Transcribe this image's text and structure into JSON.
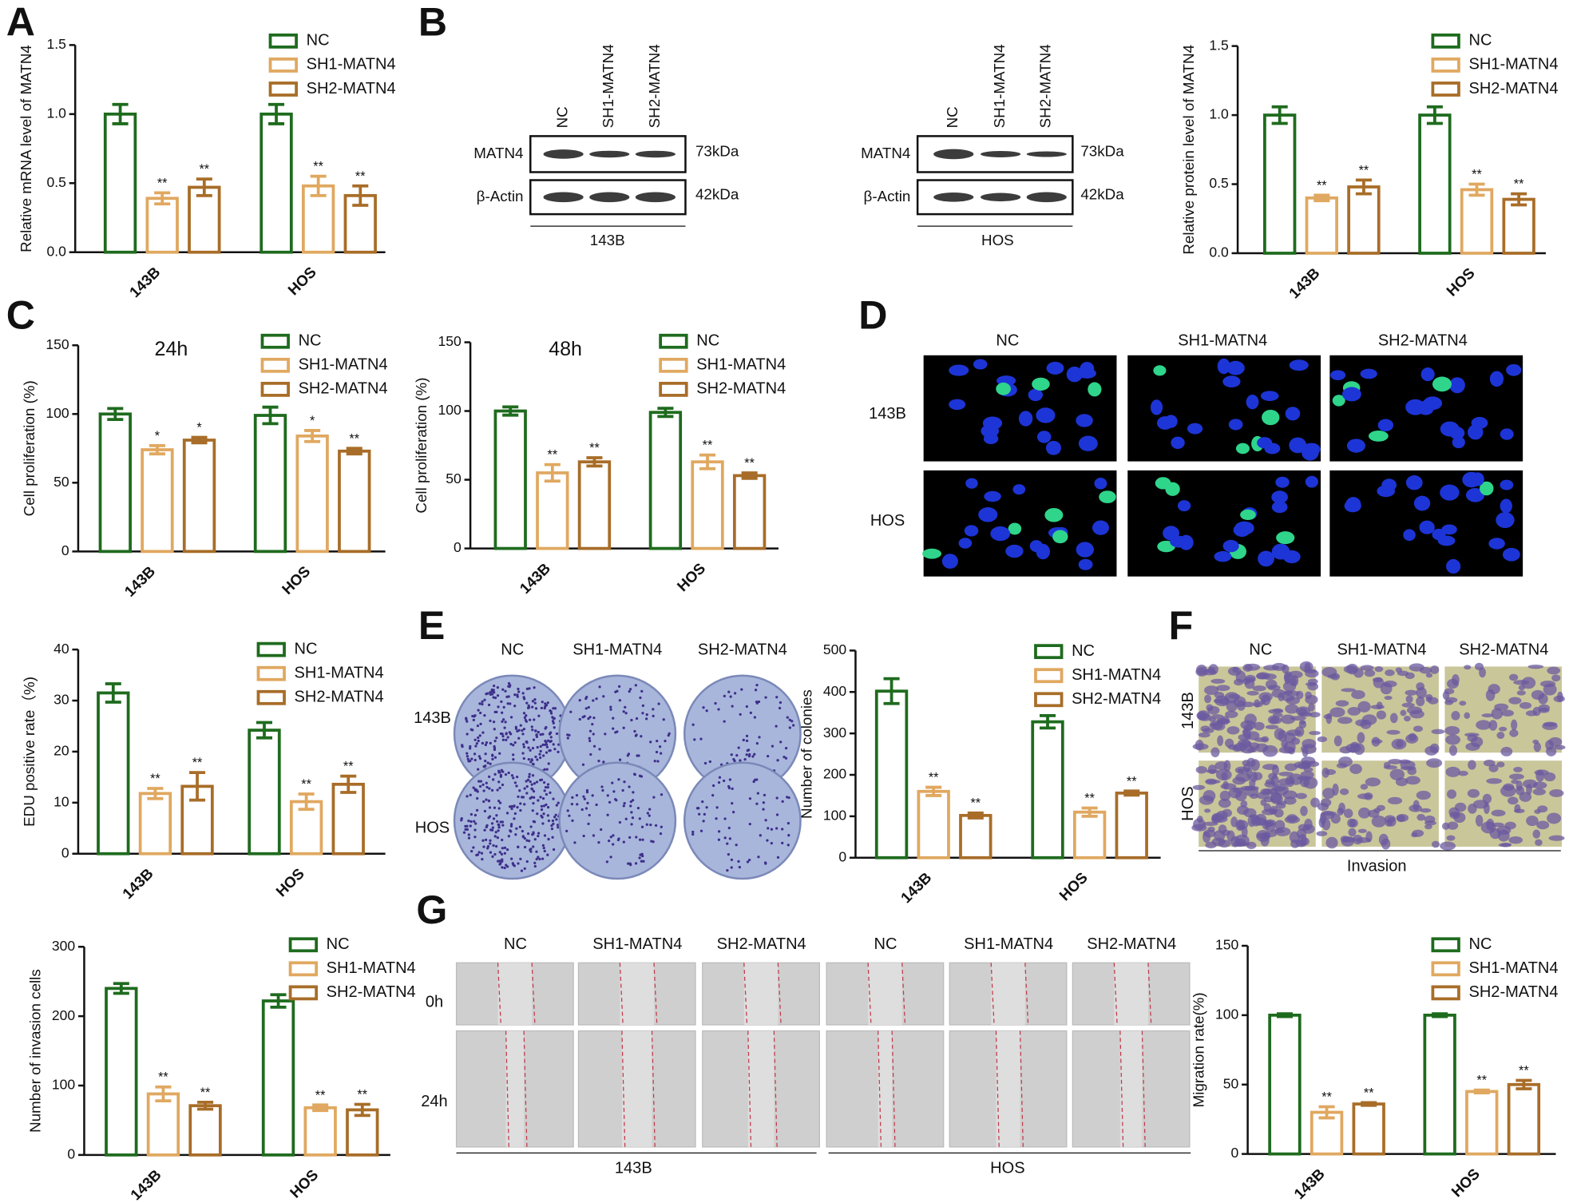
{
  "chart_data": [
    {
      "type": "bar",
      "ylabel": "Relative mRNA level of MATN4",
      "categories": [
        "143B",
        "HOS"
      ],
      "series": [
        {
          "name": "NC",
          "color": "#1e6b1e",
          "values": [
            1.0,
            1.0
          ],
          "errors": [
            0.07,
            0.07
          ],
          "significance": [
            null,
            null
          ]
        },
        {
          "name": "SH1-MATN4",
          "color": "#e0a860",
          "values": [
            0.39,
            0.48
          ],
          "errors": [
            0.04,
            0.07
          ],
          "significance": [
            "**",
            "**"
          ]
        },
        {
          "name": "SH2-MATN4",
          "color": "#a86d28",
          "values": [
            0.47,
            0.41
          ],
          "errors": [
            0.06,
            0.07
          ],
          "significance": [
            "**",
            "**"
          ]
        }
      ],
      "ylim": [
        0,
        1.5
      ],
      "yticks": [
        {
          "value": 0,
          "label": "0.0"
        },
        0.5,
        {
          "value": 1,
          "label": "1.0"
        },
        1.5
      ]
    },
    {
      "type": "bar",
      "ylabel": "Relative protein level of MATN4",
      "categories": [
        "143B",
        "HOS"
      ],
      "series": [
        {
          "name": "NC",
          "color": "#1e6b1e",
          "values": [
            1.0,
            1.0
          ],
          "errors": [
            0.06,
            0.06
          ],
          "significance": [
            null,
            null
          ]
        },
        {
          "name": "SH1-MATN4",
          "color": "#e0a860",
          "values": [
            0.4,
            0.46
          ],
          "errors": [
            0.02,
            0.04
          ],
          "significance": [
            "**",
            "**"
          ]
        },
        {
          "name": "SH2-MATN4",
          "color": "#a86d28",
          "values": [
            0.48,
            0.39
          ],
          "errors": [
            0.05,
            0.04
          ],
          "significance": [
            "**",
            "**"
          ]
        }
      ],
      "ylim": [
        0,
        1.5
      ],
      "yticks": [
        {
          "value": 0,
          "label": "0.0"
        },
        0.5,
        {
          "value": 1,
          "label": "1.0"
        },
        1.5
      ]
    },
    {
      "type": "bar",
      "title": "24h",
      "ylabel": "Cell proliferation (%)",
      "categories": [
        "143B",
        "HOS"
      ],
      "series": [
        {
          "name": "NC",
          "color": "#1e6b1e",
          "values": [
            100,
            99
          ],
          "errors": [
            4,
            6
          ],
          "significance": [
            null,
            null
          ]
        },
        {
          "name": "SH1-MATN4",
          "color": "#e0a860",
          "values": [
            74,
            84
          ],
          "errors": [
            3,
            4
          ],
          "significance": [
            "*",
            "*"
          ]
        },
        {
          "name": "SH2-MATN4",
          "color": "#a86d28",
          "values": [
            81,
            73
          ],
          "errors": [
            2,
            2
          ],
          "significance": [
            "*",
            "**"
          ]
        }
      ],
      "ylim": [
        0,
        150
      ],
      "yticks": [
        0,
        50,
        100,
        150
      ]
    },
    {
      "type": "bar",
      "title": "48h",
      "ylabel": "Cell proliferation (%)",
      "categories": [
        "143B",
        "HOS"
      ],
      "series": [
        {
          "name": "NC",
          "color": "#1e6b1e",
          "values": [
            100,
            99
          ],
          "errors": [
            3,
            3
          ],
          "significance": [
            null,
            null
          ]
        },
        {
          "name": "SH1-MATN4",
          "color": "#e0a860",
          "values": [
            55,
            63
          ],
          "errors": [
            6,
            5
          ],
          "significance": [
            "**",
            "**"
          ]
        },
        {
          "name": "SH2-MATN4",
          "color": "#a86d28",
          "values": [
            63,
            53
          ],
          "errors": [
            3,
            2
          ],
          "significance": [
            "**",
            "**"
          ]
        }
      ],
      "ylim": [
        0,
        150
      ],
      "yticks": [
        0,
        50,
        100,
        150
      ]
    },
    {
      "type": "bar",
      "ylabel": "EDU positive rate（%)",
      "categories": [
        "143B",
        "HOS"
      ],
      "series": [
        {
          "name": "NC",
          "color": "#1e6b1e",
          "values": [
            31.5,
            24.2
          ],
          "errors": [
            1.8,
            1.5
          ],
          "significance": [
            null,
            null
          ]
        },
        {
          "name": "SH1-MATN4",
          "color": "#e0a860",
          "values": [
            11.8,
            10.2
          ],
          "errors": [
            1.0,
            1.5
          ],
          "significance": [
            "**",
            "**"
          ]
        },
        {
          "name": "SH2-MATN4",
          "color": "#a86d28",
          "values": [
            13.2,
            13.6
          ],
          "errors": [
            2.7,
            1.6
          ],
          "significance": [
            "**",
            "**"
          ]
        }
      ],
      "ylim": [
        0,
        40
      ],
      "yticks": [
        0,
        10,
        20,
        30,
        40
      ]
    },
    {
      "type": "bar",
      "ylabel": "Number of colonies",
      "categories": [
        "143B",
        "HOS"
      ],
      "series": [
        {
          "name": "NC",
          "color": "#1e6b1e",
          "values": [
            402,
            328
          ],
          "errors": [
            30,
            15
          ],
          "significance": [
            null,
            null
          ]
        },
        {
          "name": "SH1-MATN4",
          "color": "#e0a860",
          "values": [
            160,
            110
          ],
          "errors": [
            10,
            10
          ],
          "significance": [
            "**",
            "**"
          ]
        },
        {
          "name": "SH2-MATN4",
          "color": "#a86d28",
          "values": [
            102,
            156
          ],
          "errors": [
            6,
            5
          ],
          "significance": [
            "**",
            "**"
          ]
        }
      ],
      "ylim": [
        0,
        500
      ],
      "yticks": [
        0,
        100,
        200,
        300,
        400,
        500
      ]
    },
    {
      "type": "bar",
      "ylabel": "Number of invasion cells",
      "categories": [
        "143B",
        "HOS"
      ],
      "series": [
        {
          "name": "NC",
          "color": "#1e6b1e",
          "values": [
            240,
            222
          ],
          "errors": [
            7,
            9
          ],
          "significance": [
            null,
            null
          ]
        },
        {
          "name": "SH1-MATN4",
          "color": "#e0a860",
          "values": [
            88,
            68
          ],
          "errors": [
            10,
            4
          ],
          "significance": [
            "**",
            "**"
          ]
        },
        {
          "name": "SH2-MATN4",
          "color": "#a86d28",
          "values": [
            71,
            65
          ],
          "errors": [
            5,
            8
          ],
          "significance": [
            "**",
            "**"
          ]
        }
      ],
      "ylim": [
        0,
        300
      ],
      "yticks": [
        0,
        100,
        200,
        300
      ]
    },
    {
      "type": "bar",
      "ylabel": "Migration rate(%)",
      "categories": [
        "143B",
        "HOS"
      ],
      "series": [
        {
          "name": "NC",
          "color": "#1e6b1e",
          "values": [
            100,
            100
          ],
          "errors": [
            1,
            1
          ],
          "significance": [
            null,
            null
          ]
        },
        {
          "name": "SH1-MATN4",
          "color": "#e0a860",
          "values": [
            30,
            45
          ],
          "errors": [
            4,
            1
          ],
          "significance": [
            "**",
            "**"
          ]
        },
        {
          "name": "SH2-MATN4",
          "color": "#a86d28",
          "values": [
            36,
            50
          ],
          "errors": [
            1,
            3
          ],
          "significance": [
            "**",
            "**"
          ]
        }
      ],
      "ylim": [
        0,
        150
      ],
      "yticks": [
        0,
        50,
        100,
        150
      ]
    }
  ],
  "panel_labels": [
    "A",
    "B",
    "C",
    "D",
    "E",
    "F",
    "G"
  ],
  "western_blots": [
    {
      "lanes": [
        "NC",
        "SH1-MATN4",
        "SH2-MATN4"
      ],
      "rows": [
        {
          "protein": "MATN4",
          "size": "73kDa"
        },
        {
          "protein": "β-Actin",
          "size": "42kDa"
        }
      ],
      "cell_line": "143B"
    },
    {
      "lanes": [
        "NC",
        "SH1-MATN4",
        "SH2-MATN4"
      ],
      "rows": [
        {
          "protein": "MATN4",
          "size": "73kDa"
        },
        {
          "protein": "β-Actin",
          "size": "42kDa"
        }
      ],
      "cell_line": "HOS"
    }
  ],
  "panel_D": {
    "columns": [
      "NC",
      "SH1-MATN4",
      "SH2-MATN4"
    ],
    "rows": [
      "143B",
      "HOS"
    ]
  },
  "panel_E": {
    "columns": [
      "NC",
      "SH1-MATN4",
      "SH2-MATN4"
    ],
    "rows": [
      "143B",
      "HOS"
    ]
  },
  "panel_F": {
    "columns": [
      "NC",
      "SH1-MATN4",
      "SH2-MATN4"
    ],
    "rows": [
      "143B",
      "HOS"
    ],
    "caption": "Invasion"
  },
  "panel_G": {
    "columns": [
      "NC",
      "SH1-MATN4",
      "SH2-MATN4",
      "NC",
      "SH1-MATN4",
      "SH2-MATN4"
    ],
    "rows": [
      "0h",
      "24h"
    ],
    "groups": [
      "143B",
      "HOS"
    ]
  }
}
